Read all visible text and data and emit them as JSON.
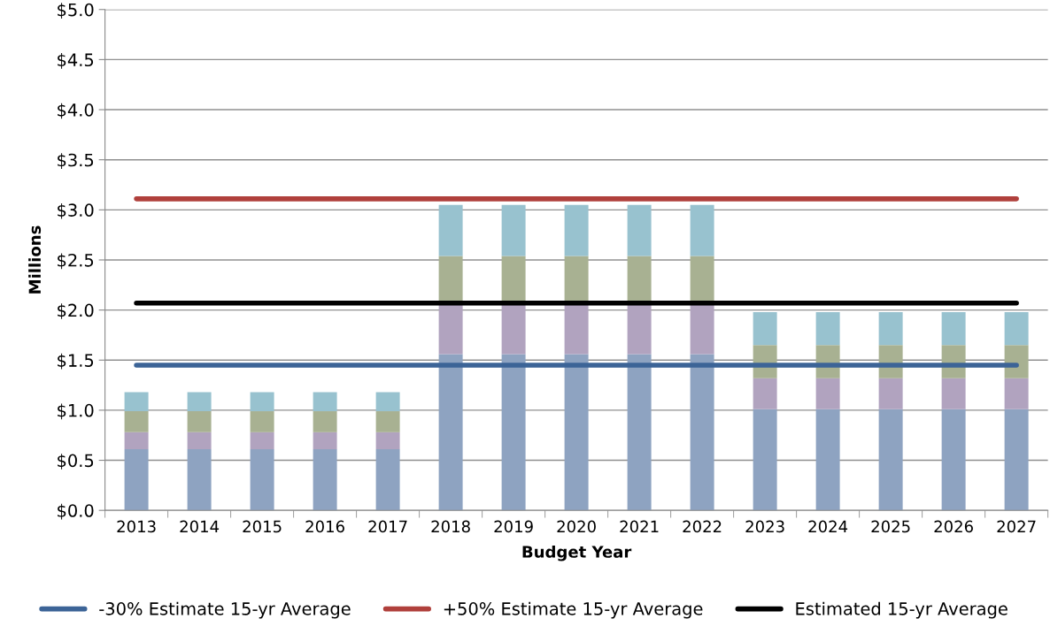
{
  "chart_data": {
    "type": "bar",
    "stacked": true,
    "xlabel": "Budget Year",
    "ylabel": "Millions",
    "categories": [
      "2013",
      "2014",
      "2015",
      "2016",
      "2017",
      "2018",
      "2019",
      "2020",
      "2021",
      "2022",
      "2023",
      "2024",
      "2025",
      "2026",
      "2027"
    ],
    "series": [
      {
        "color": "#8ea3c1",
        "values": [
          0.61,
          0.61,
          0.61,
          0.61,
          0.61,
          1.56,
          1.56,
          1.56,
          1.56,
          1.56,
          1.01,
          1.01,
          1.01,
          1.01,
          1.01
        ]
      },
      {
        "color": "#b1a3bf",
        "values": [
          0.17,
          0.17,
          0.17,
          0.17,
          0.17,
          0.49,
          0.49,
          0.49,
          0.49,
          0.49,
          0.31,
          0.31,
          0.31,
          0.31,
          0.31
        ]
      },
      {
        "color": "#a8b192",
        "values": [
          0.21,
          0.21,
          0.21,
          0.21,
          0.21,
          0.49,
          0.49,
          0.49,
          0.49,
          0.49,
          0.33,
          0.33,
          0.33,
          0.33,
          0.33
        ]
      },
      {
        "color": "#98c2cf",
        "values": [
          0.19,
          0.19,
          0.19,
          0.19,
          0.19,
          0.51,
          0.51,
          0.51,
          0.51,
          0.51,
          0.33,
          0.33,
          0.33,
          0.33,
          0.33
        ]
      },
      {
        "type": "line",
        "name": "-30% Estimate 15-yr Average",
        "color": "#3c6497",
        "values": [
          1.45,
          1.45,
          1.45,
          1.45,
          1.45,
          1.45,
          1.45,
          1.45,
          1.45,
          1.45,
          1.45,
          1.45,
          1.45,
          1.45,
          1.45
        ]
      },
      {
        "type": "line",
        "name": "+50% Estimate 15-yr Average",
        "color": "#b0403c",
        "values": [
          3.11,
          3.11,
          3.11,
          3.11,
          3.11,
          3.11,
          3.11,
          3.11,
          3.11,
          3.11,
          3.11,
          3.11,
          3.11,
          3.11,
          3.11
        ]
      },
      {
        "type": "line",
        "name": "Estimated 15-yr Average",
        "color": "#000000",
        "values": [
          2.07,
          2.07,
          2.07,
          2.07,
          2.07,
          2.07,
          2.07,
          2.07,
          2.07,
          2.07,
          2.07,
          2.07,
          2.07,
          2.07,
          2.07
        ]
      }
    ],
    "ylim": [
      0,
      5
    ],
    "yticks": [
      {
        "value": 0,
        "label": "$0.0"
      },
      {
        "value": 0.5,
        "label": "$0.5"
      },
      {
        "value": 1,
        "label": "$1.0"
      },
      {
        "value": 1.5,
        "label": "$1.5"
      },
      {
        "value": 2,
        "label": "$2.0"
      },
      {
        "value": 2.5,
        "label": "$2.5"
      },
      {
        "value": 3,
        "label": "$3.0"
      },
      {
        "value": 3.5,
        "label": "$3.5"
      },
      {
        "value": 4,
        "label": "$4.0"
      },
      {
        "value": 4.5,
        "label": "$4.5"
      },
      {
        "value": 5,
        "label": "$5.0"
      }
    ],
    "grid": "y",
    "legend": "bottom",
    "marker": "none",
    "line_style": "solid"
  }
}
